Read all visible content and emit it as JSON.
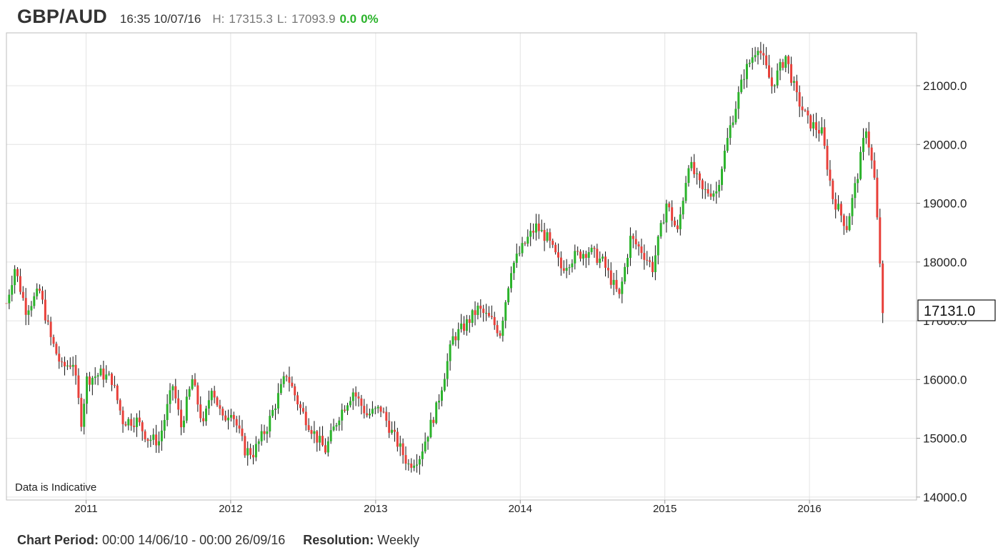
{
  "header": {
    "symbol": "GBP/AUD",
    "datetime": "16:35 10/07/16",
    "high_label": "H:",
    "high_value": "17315.3",
    "low_label": "L:",
    "low_value": "17093.9",
    "change": "0.0",
    "change_pct": "0%",
    "change_color": "#2bb32b"
  },
  "footer": {
    "period_label": "Chart Period:",
    "period_value": "00:00 14/06/10 - 00:00 26/09/16",
    "resolution_label": "Resolution:",
    "resolution_value": "Weekly"
  },
  "chart_data": {
    "type": "candlestick",
    "title": "GBP/AUD",
    "x_axis": {
      "ticks": [
        "2011",
        "2012",
        "2013",
        "2014",
        "2015",
        "2016"
      ],
      "range": [
        "2010-06-14",
        "2016-07-10"
      ]
    },
    "y_axis": {
      "side": "right",
      "ticks": [
        "14000.0",
        "15000.0",
        "16000.0",
        "17000.0",
        "18000.0",
        "19000.0",
        "20000.0",
        "21000.0"
      ],
      "range": [
        13950,
        21900
      ]
    },
    "grid": true,
    "annotation": "Data is Indicative",
    "last_price_label": "17131.0",
    "colors": {
      "up": "#2bb32b",
      "down": "#e8403a",
      "wick": "#111111",
      "grid": "#e4e4e4"
    },
    "close_path": [
      [
        "2010-06-14",
        17300
      ],
      [
        "2010-07-05",
        17900
      ],
      [
        "2010-08-02",
        17200
      ],
      [
        "2010-09-06",
        17500
      ],
      [
        "2010-10-04",
        16700
      ],
      [
        "2010-11-01",
        16200
      ],
      [
        "2010-11-29",
        16300
      ],
      [
        "2010-12-20",
        15300
      ],
      [
        "2011-01-03",
        16000
      ],
      [
        "2011-02-07",
        16100
      ],
      [
        "2011-03-07",
        16000
      ],
      [
        "2011-04-04",
        15300
      ],
      [
        "2011-05-09",
        15300
      ],
      [
        "2011-06-06",
        15000
      ],
      [
        "2011-07-04",
        14950
      ],
      [
        "2011-08-08",
        15900
      ],
      [
        "2011-08-29",
        15200
      ],
      [
        "2011-09-26",
        16000
      ],
      [
        "2011-10-24",
        15200
      ],
      [
        "2011-11-14",
        15900
      ],
      [
        "2011-12-12",
        15300
      ],
      [
        "2012-01-02",
        15500
      ],
      [
        "2012-02-06",
        14800
      ],
      [
        "2012-02-27",
        14750
      ],
      [
        "2012-04-02",
        15200
      ],
      [
        "2012-05-21",
        16100
      ],
      [
        "2012-06-25",
        15500
      ],
      [
        "2012-08-06",
        15000
      ],
      [
        "2012-08-27",
        14800
      ],
      [
        "2012-10-01",
        15400
      ],
      [
        "2012-11-05",
        15800
      ],
      [
        "2012-12-10",
        15400
      ],
      [
        "2013-01-14",
        15500
      ],
      [
        "2013-02-11",
        15100
      ],
      [
        "2013-03-25",
        14550
      ],
      [
        "2013-04-22",
        14700
      ],
      [
        "2013-06-03",
        15500
      ],
      [
        "2013-07-15",
        16700
      ],
      [
        "2013-08-12",
        16900
      ],
      [
        "2013-09-16",
        17200
      ],
      [
        "2013-10-21",
        17000
      ],
      [
        "2013-11-11",
        16800
      ],
      [
        "2013-12-09",
        17900
      ],
      [
        "2014-01-20",
        18400
      ],
      [
        "2014-02-10",
        18600
      ],
      [
        "2014-03-10",
        18400
      ],
      [
        "2014-04-14",
        17900
      ],
      [
        "2014-05-19",
        18100
      ],
      [
        "2014-06-23",
        18200
      ],
      [
        "2014-07-28",
        18000
      ],
      [
        "2014-09-08",
        17400
      ],
      [
        "2014-10-06",
        18400
      ],
      [
        "2014-11-03",
        18200
      ],
      [
        "2014-12-01",
        17900
      ],
      [
        "2015-01-05",
        19000
      ],
      [
        "2015-02-02",
        18500
      ],
      [
        "2015-03-02",
        19700
      ],
      [
        "2015-04-06",
        19200
      ],
      [
        "2015-05-11",
        19200
      ],
      [
        "2015-06-15",
        20300
      ],
      [
        "2015-07-20",
        21200
      ],
      [
        "2015-08-24",
        21700
      ],
      [
        "2015-09-28",
        21000
      ],
      [
        "2015-11-02",
        21500
      ],
      [
        "2015-11-30",
        20800
      ],
      [
        "2015-12-28",
        20400
      ],
      [
        "2016-02-01",
        20200
      ],
      [
        "2016-02-29",
        19100
      ],
      [
        "2016-04-04",
        18600
      ],
      [
        "2016-05-02",
        19500
      ],
      [
        "2016-05-23",
        20300
      ],
      [
        "2016-06-13",
        19400
      ],
      [
        "2016-06-27",
        18000
      ],
      [
        "2016-07-10",
        17131
      ]
    ]
  }
}
